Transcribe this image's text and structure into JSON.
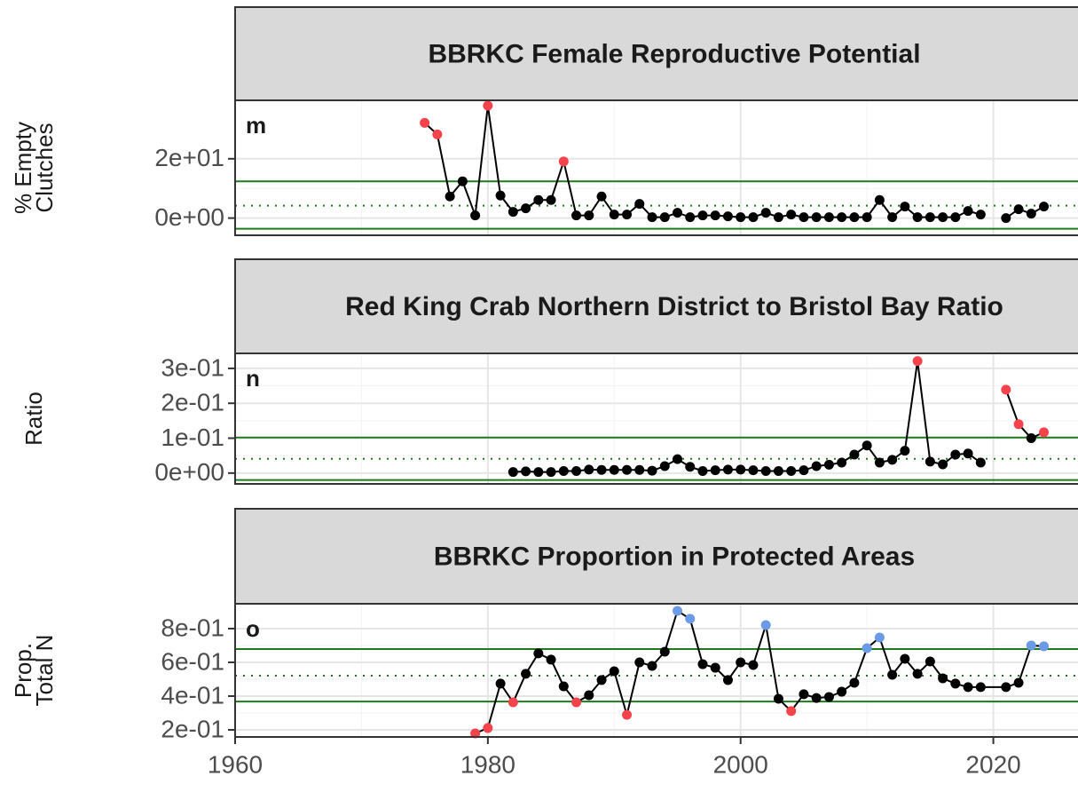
{
  "chart_data": [
    {
      "type": "line",
      "title": "BBRKC Female Reproductive Potential",
      "panel_label": "m",
      "ylabel": [
        "% Empty",
        "Clutches"
      ],
      "x": [
        1975,
        1976,
        1977,
        1978,
        1979,
        1980,
        1981,
        1982,
        1983,
        1984,
        1985,
        1986,
        1987,
        1988,
        1989,
        1990,
        1991,
        1992,
        1993,
        1994,
        1995,
        1996,
        1997,
        1998,
        1999,
        2000,
        2001,
        2002,
        2003,
        2004,
        2005,
        2006,
        2007,
        2008,
        2009,
        2010,
        2011,
        2012,
        2013,
        2014,
        2015,
        2016,
        2017,
        2018,
        2019,
        2020,
        2021,
        2022,
        2023,
        2024
      ],
      "values": [
        32.1,
        28.2,
        7.3,
        12.4,
        0.9,
        37.9,
        7.6,
        2.1,
        3.3,
        6.1,
        6.1,
        19.1,
        0.9,
        0.9,
        7.3,
        1.2,
        1.2,
        4.8,
        0.3,
        0.3,
        1.8,
        0.3,
        0.9,
        0.9,
        0.6,
        0.3,
        0.3,
        1.8,
        0.3,
        1.2,
        0.3,
        0.3,
        0.3,
        0.3,
        0.3,
        0.3,
        6.1,
        0.3,
        3.9,
        0.3,
        0.3,
        0.3,
        0.3,
        2.4,
        1.2,
        null,
        0,
        3.0,
        1.5,
        3.9
      ],
      "point_colors": [
        "#f4434b",
        "#f4434b",
        "#000000",
        "#000000",
        "#000000",
        "#f4434b",
        "#000000",
        "#000000",
        "#000000",
        "#000000",
        "#000000",
        "#f4434b",
        "#000000",
        "#000000",
        "#000000",
        "#000000",
        "#000000",
        "#000000",
        "#000000",
        "#000000",
        "#000000",
        "#000000",
        "#000000",
        "#000000",
        "#000000",
        "#000000",
        "#000000",
        "#000000",
        "#000000",
        "#000000",
        "#000000",
        "#000000",
        "#000000",
        "#000000",
        "#000000",
        "#000000",
        "#000000",
        "#000000",
        "#000000",
        "#000000",
        "#000000",
        "#000000",
        "#000000",
        "#000000",
        "#000000",
        null,
        "#000000",
        "#000000",
        "#000000",
        "#000000"
      ],
      "color": "#000000",
      "xlim": [
        1960,
        2026.7
      ],
      "ylim": [
        -5.8,
        39.7
      ],
      "yticks": [
        {
          "value": 0,
          "label": "0e+00"
        },
        {
          "value": 20,
          "label": "2e+01"
        }
      ],
      "hlines": [
        12.4,
        4.2,
        -3.6
      ],
      "hline_styles": [
        "solid",
        "dotted",
        "solid"
      ],
      "hline_color": "#1e7a1e",
      "grid": true
    },
    {
      "type": "line",
      "title": "Red King Crab Northern District to Bristol Bay Ratio",
      "panel_label": "n",
      "ylabel": [
        "Ratio"
      ],
      "x": [
        1982,
        1983,
        1984,
        1985,
        1986,
        1987,
        1988,
        1989,
        1990,
        1991,
        1992,
        1993,
        1994,
        1995,
        1996,
        1997,
        1998,
        1999,
        2000,
        2001,
        2002,
        2003,
        2004,
        2005,
        2006,
        2007,
        2008,
        2009,
        2010,
        2011,
        2012,
        2013,
        2014,
        2015,
        2016,
        2017,
        2018,
        2019,
        2020,
        2021,
        2022,
        2023,
        2024
      ],
      "values": [
        0.003,
        0.005,
        0.003,
        0.003,
        0.006,
        0.006,
        0.01,
        0.009,
        0.009,
        0.009,
        0.009,
        0.007,
        0.02,
        0.04,
        0.018,
        0.006,
        0.008,
        0.01,
        0.01,
        0.008,
        0.006,
        0.006,
        0.006,
        0.008,
        0.02,
        0.024,
        0.03,
        0.053,
        0.079,
        0.03,
        0.038,
        0.064,
        0.321,
        0.033,
        0.025,
        0.053,
        0.056,
        0.03,
        null,
        0.239,
        0.14,
        0.1,
        0.117
      ],
      "point_colors": [
        "#000000",
        "#000000",
        "#000000",
        "#000000",
        "#000000",
        "#000000",
        "#000000",
        "#000000",
        "#000000",
        "#000000",
        "#000000",
        "#000000",
        "#000000",
        "#000000",
        "#000000",
        "#000000",
        "#000000",
        "#000000",
        "#000000",
        "#000000",
        "#000000",
        "#000000",
        "#000000",
        "#000000",
        "#000000",
        "#000000",
        "#000000",
        "#000000",
        "#000000",
        "#000000",
        "#000000",
        "#000000",
        "#f4434b",
        "#000000",
        "#000000",
        "#000000",
        "#000000",
        "#000000",
        null,
        "#f4434b",
        "#f4434b",
        "#000000",
        "#f4434b"
      ],
      "color": "#000000",
      "xlim": [
        1960,
        2026.7
      ],
      "ylim": [
        -0.031,
        0.343
      ],
      "yticks": [
        {
          "value": 0,
          "label": "0e+00"
        },
        {
          "value": 0.1,
          "label": "1e-01"
        },
        {
          "value": 0.2,
          "label": "2e-01"
        },
        {
          "value": 0.3,
          "label": "3e-01"
        }
      ],
      "hlines": [
        0.102,
        0.041,
        -0.02
      ],
      "hline_styles": [
        "solid",
        "dotted",
        "solid"
      ],
      "hline_color": "#1e7a1e",
      "grid": true
    },
    {
      "type": "line",
      "title": "BBRKC Proportion in Protected Areas",
      "panel_label": "o",
      "ylabel": [
        "Prop.",
        "Total N"
      ],
      "x": [
        1979,
        1980,
        1981,
        1982,
        1983,
        1984,
        1985,
        1986,
        1987,
        1988,
        1989,
        1990,
        1991,
        1992,
        1993,
        1994,
        1995,
        1996,
        1997,
        1998,
        1999,
        2000,
        2001,
        2002,
        2003,
        2004,
        2005,
        2006,
        2007,
        2008,
        2009,
        2010,
        2011,
        2012,
        2013,
        2014,
        2015,
        2016,
        2017,
        2018,
        2019,
        2021,
        2022,
        2023,
        2024
      ],
      "values": [
        0.179,
        0.211,
        0.474,
        0.363,
        0.532,
        0.653,
        0.616,
        0.458,
        0.363,
        0.405,
        0.495,
        0.547,
        0.289,
        0.6,
        0.579,
        0.663,
        0.905,
        0.858,
        0.589,
        0.568,
        0.495,
        0.6,
        0.584,
        0.821,
        0.384,
        0.311,
        0.411,
        0.389,
        0.395,
        0.426,
        0.479,
        0.684,
        0.747,
        0.526,
        0.621,
        0.532,
        0.605,
        0.505,
        0.474,
        0.453,
        0.453,
        0.453,
        0.479,
        0.7,
        0.695
      ],
      "point_colors": [
        "#f4434b",
        "#f4434b",
        "#000000",
        "#f4434b",
        "#000000",
        "#000000",
        "#000000",
        "#000000",
        "#f4434b",
        "#000000",
        "#000000",
        "#000000",
        "#f4434b",
        "#000000",
        "#000000",
        "#000000",
        "#6b9be6",
        "#6b9be6",
        "#000000",
        "#000000",
        "#000000",
        "#000000",
        "#000000",
        "#6b9be6",
        "#000000",
        "#f4434b",
        "#000000",
        "#000000",
        "#000000",
        "#000000",
        "#000000",
        "#6b9be6",
        "#6b9be6",
        "#000000",
        "#000000",
        "#000000",
        "#000000",
        "#000000",
        "#000000",
        "#000000",
        "#000000",
        "#000000",
        "#000000",
        "#6b9be6",
        "#6b9be6"
      ],
      "color": "#000000",
      "xlim": [
        1960,
        2026.7
      ],
      "ylim": [
        0.158,
        0.947
      ],
      "yticks": [
        {
          "value": 0.2,
          "label": "2e-01"
        },
        {
          "value": 0.4,
          "label": "4e-01"
        },
        {
          "value": 0.6,
          "label": "6e-01"
        },
        {
          "value": 0.8,
          "label": "8e-01"
        }
      ],
      "xticks": [
        1960,
        1980,
        2000,
        2020
      ],
      "hlines": [
        0.679,
        0.521,
        0.368
      ],
      "hline_styles": [
        "solid",
        "dotted",
        "solid"
      ],
      "hline_color": "#1e7a1e",
      "grid": true
    }
  ]
}
